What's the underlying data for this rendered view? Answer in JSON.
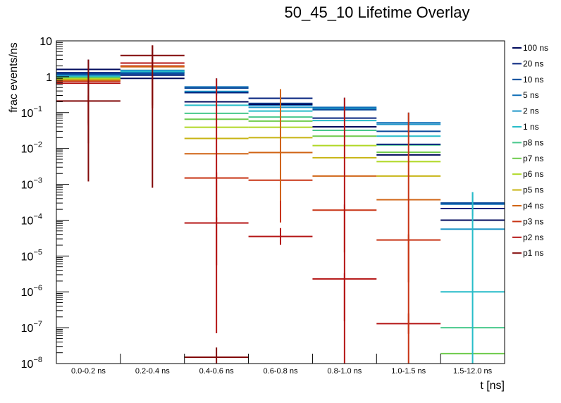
{
  "chart_data": {
    "type": "step-histogram-overlay",
    "title": "50_45_10 Lifetime Overlay",
    "xlabel": "t [ns]",
    "ylabel": "frac events/ns",
    "yscale": "log",
    "ylim": [
      1e-08,
      10
    ],
    "ytick_labels": [
      "10",
      "1",
      "10^-1",
      "10^-2",
      "10^-3",
      "10^-4",
      "10^-5",
      "10^-6",
      "10^-7",
      "10^-8"
    ],
    "ytick_values": [
      10,
      1,
      0.1,
      0.01,
      0.001,
      0.0001,
      1e-05,
      1e-06,
      1e-07,
      1e-08
    ],
    "categories": [
      "0.0-0.2 ns",
      "0.2-0.4 ns",
      "0.4-0.6 ns",
      "0.6-0.8 ns",
      "0.8-1.0 ns",
      "1.0-1.5 ns",
      "1.5-12.0 ns"
    ],
    "legend_position": "right",
    "series": [
      {
        "name": "100 ns",
        "color": "#000a5c",
        "values": [
          1.6,
          0.9,
          0.2,
          0.17,
          0.04,
          0.0066,
          0.0001
        ],
        "err_top": [
          3.0,
          null,
          null,
          null,
          null,
          null,
          null
        ]
      },
      {
        "name": "20 ns",
        "color": "#05237e",
        "values": [
          1.3,
          1.1,
          0.36,
          0.25,
          0.07,
          0.013,
          0.00021
        ],
        "err_top": [
          null,
          null,
          null,
          null,
          null,
          null,
          null
        ]
      },
      {
        "name": "10 ns",
        "color": "#0b4a9a",
        "values": [
          1.2,
          1.2,
          0.48,
          0.18,
          0.12,
          0.03,
          0.0003
        ],
        "err_top": [
          null,
          null,
          null,
          null,
          null,
          null,
          null
        ]
      },
      {
        "name": "5 ns",
        "color": "#1070b8",
        "values": [
          1.15,
          1.3,
          0.52,
          0.16,
          0.14,
          0.052,
          0.00028
        ],
        "err_top": [
          null,
          null,
          0.9,
          0.45,
          0.26,
          0.1,
          0.0006
        ]
      },
      {
        "name": "2 ns",
        "color": "#1e96c8",
        "values": [
          1.1,
          1.5,
          0.39,
          0.14,
          0.13,
          0.047,
          5.6e-05
        ],
        "err_top": [
          null,
          null,
          null,
          null,
          null,
          null,
          null
        ]
      },
      {
        "name": "1 ns",
        "color": "#26bcc8",
        "values": [
          1.05,
          1.4,
          0.16,
          0.11,
          0.06,
          0.022,
          1e-06
        ],
        "err_top": [
          null,
          null,
          null,
          null,
          null,
          null,
          null
        ]
      },
      {
        "name": "p8 ns",
        "color": "#48c88c",
        "values": [
          1.0,
          1.35,
          0.095,
          0.075,
          0.032,
          0.0125,
          1e-07
        ],
        "err_top": [
          null,
          null,
          null,
          null,
          null,
          null,
          null
        ]
      },
      {
        "name": "p7 ns",
        "color": "#6ecb4c",
        "values": [
          0.95,
          1.35,
          0.065,
          0.058,
          0.022,
          0.0078,
          1.9e-08
        ],
        "err_top": [
          null,
          null,
          null,
          null,
          null,
          null,
          null
        ]
      },
      {
        "name": "p6 ns",
        "color": "#b0d826",
        "values": [
          0.9,
          1.35,
          0.039,
          0.039,
          0.012,
          0.0043,
          null
        ],
        "err_top": [
          null,
          null,
          null,
          null,
          null,
          null,
          null
        ]
      },
      {
        "name": "p5 ns",
        "color": "#c8b414",
        "values": [
          0.85,
          1.5,
          0.019,
          0.02,
          0.0055,
          0.0017,
          null
        ],
        "err_top": [
          null,
          null,
          null,
          null,
          null,
          null,
          null
        ]
      },
      {
        "name": "p4 ns",
        "color": "#d06414",
        "values": [
          0.8,
          1.9,
          0.0071,
          0.0077,
          0.0017,
          0.00037,
          null
        ],
        "err_top": [
          null,
          null,
          null,
          null,
          null,
          null,
          null
        ]
      },
      {
        "name": "p3 ns",
        "color": "#c83414",
        "values": [
          0.75,
          2.0,
          0.0015,
          0.0013,
          0.00019,
          2.8e-05,
          null
        ],
        "err_top": [
          null,
          null,
          null,
          null,
          null,
          null,
          null
        ]
      },
      {
        "name": "p2 ns",
        "color": "#b41414",
        "values": [
          0.66,
          2.4,
          8.3e-05,
          3.5e-05,
          2.3e-06,
          1.3e-07,
          null
        ],
        "err_top": [
          null,
          null,
          null,
          6e-05,
          null,
          2.5e-07,
          null
        ]
      },
      {
        "name": "p1 ns",
        "color": "#820a0a",
        "values": [
          0.21,
          3.9,
          1.5e-08,
          null,
          null,
          null,
          null
        ],
        "err_top": [
          null,
          7.5,
          2.8e-08,
          null,
          null,
          null,
          null
        ]
      }
    ]
  }
}
